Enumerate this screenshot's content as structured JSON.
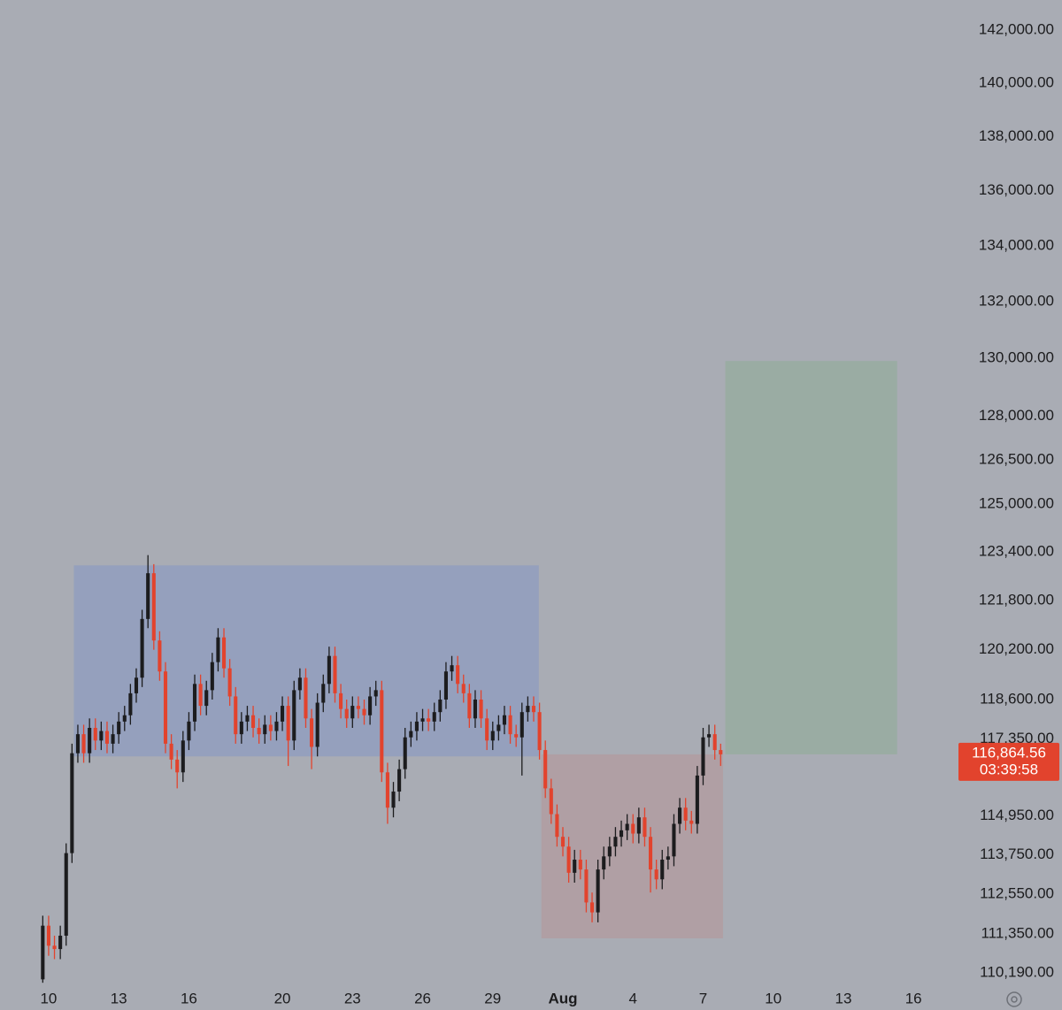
{
  "chart_data": {
    "type": "candlestick",
    "background": "#a9acb4",
    "up_color": "#1c1c1e",
    "down_color": "#e2432d",
    "log": true,
    "grid": false,
    "xlim": [
      -2.08,
      38.81
    ],
    "ylim": [
      109800,
      143160
    ],
    "xticks": [
      {
        "value": 0,
        "label": "10"
      },
      {
        "value": 3,
        "label": "13"
      },
      {
        "value": 6,
        "label": "16"
      },
      {
        "value": 10,
        "label": "20"
      },
      {
        "value": 13,
        "label": "23"
      },
      {
        "value": 16,
        "label": "26"
      },
      {
        "value": 19,
        "label": "29"
      },
      {
        "value": 22,
        "label": "Aug"
      },
      {
        "value": 25,
        "label": "4"
      },
      {
        "value": 28,
        "label": "7"
      },
      {
        "value": 31,
        "label": "10"
      },
      {
        "value": 34,
        "label": "13"
      },
      {
        "value": 37,
        "label": "16"
      }
    ],
    "yticks": [
      {
        "value": 142000,
        "label": "142,000.00"
      },
      {
        "value": 140000,
        "label": "140,000.00"
      },
      {
        "value": 138000,
        "label": "138,000.00"
      },
      {
        "value": 136000,
        "label": "136,000.00"
      },
      {
        "value": 134000,
        "label": "134,000.00"
      },
      {
        "value": 132000,
        "label": "132,000.00"
      },
      {
        "value": 130000,
        "label": "130,000.00"
      },
      {
        "value": 128000,
        "label": "128,000.00"
      },
      {
        "value": 126500,
        "label": "126,500.00"
      },
      {
        "value": 125000,
        "label": "125,000.00"
      },
      {
        "value": 123400,
        "label": "123,400.00"
      },
      {
        "value": 121800,
        "label": "121,800.00"
      },
      {
        "value": 120200,
        "label": "120,200.00"
      },
      {
        "value": 118600,
        "label": "118,600.00"
      },
      {
        "value": 117350,
        "label": "117,350.00"
      },
      {
        "value": 114950,
        "label": "114,950.00"
      },
      {
        "value": 113750,
        "label": "113,750.00"
      },
      {
        "value": 112550,
        "label": "112,550.00"
      },
      {
        "value": 111350,
        "label": "111,350.00"
      },
      {
        "value": 110190,
        "label": "110,190.00"
      }
    ],
    "zones": [
      {
        "x": [
          1.08,
          20.97
        ],
        "y": [
          116800,
          122960
        ],
        "color": "#95a0bd"
      },
      {
        "x": [
          21.08,
          28.85
        ],
        "y": [
          111220,
          116864.56
        ],
        "color": "#b09fa4"
      },
      {
        "x": [
          28.95,
          36.3
        ],
        "y": [
          116864.56,
          129910
        ],
        "color": "#9aaca3"
      }
    ],
    "last_price": {
      "value": 116864.56,
      "label": "116,864.56",
      "color": "#e2432d"
    },
    "countdown": "03:39:58",
    "x": [
      -0.25,
      0,
      0.25,
      0.5,
      0.75,
      1,
      1.25,
      1.5,
      1.75,
      2,
      2.25,
      2.5,
      2.75,
      3,
      3.25,
      3.5,
      3.75,
      4,
      4.25,
      4.5,
      4.75,
      5,
      5.25,
      5.5,
      5.75,
      6,
      6.25,
      6.5,
      6.75,
      7,
      7.25,
      7.5,
      7.75,
      8,
      8.25,
      8.5,
      8.75,
      9,
      9.25,
      9.5,
      9.75,
      10,
      10.25,
      10.5,
      10.75,
      11,
      11.25,
      11.5,
      11.75,
      12,
      12.25,
      12.5,
      12.75,
      13,
      13.25,
      13.5,
      13.75,
      14,
      14.25,
      14.5,
      14.75,
      15,
      15.25,
      15.5,
      15.75,
      16,
      16.25,
      16.5,
      16.75,
      17,
      17.25,
      17.5,
      17.75,
      18,
      18.25,
      18.5,
      18.75,
      19,
      19.25,
      19.5,
      19.75,
      20,
      20.25,
      20.5,
      20.75,
      21,
      21.25,
      21.5,
      21.75,
      22,
      22.25,
      22.5,
      22.75,
      23,
      23.25,
      23.5,
      23.75,
      24,
      24.25,
      24.5,
      24.75,
      25,
      25.25,
      25.5,
      25.75,
      26,
      26.25,
      26.5,
      26.75,
      27,
      27.25,
      27.5,
      27.75,
      28,
      28.25,
      28.5,
      28.75
    ],
    "open": [
      110000,
      111600,
      111000,
      110900,
      111300,
      113800,
      116900,
      117500,
      116900,
      117700,
      117300,
      117600,
      117200,
      117500,
      117900,
      118100,
      118800,
      119300,
      121200,
      122700,
      120500,
      119500,
      117200,
      116700,
      116300,
      117300,
      117900,
      119100,
      118400,
      118900,
      119800,
      120600,
      119600,
      118700,
      117500,
      117900,
      118100,
      117700,
      117500,
      117800,
      117600,
      117900,
      118400,
      117300,
      118900,
      119300,
      118000,
      117100,
      118500,
      119100,
      120000,
      118800,
      118300,
      118000,
      118400,
      118300,
      118100,
      118700,
      118900,
      116300,
      115200,
      115700,
      116400,
      117400,
      117600,
      117900,
      118000,
      117900,
      118200,
      118600,
      119500,
      119700,
      119100,
      118800,
      118000,
      118600,
      118000,
      117300,
      117600,
      117800,
      118100,
      117500,
      117400,
      118200,
      118400,
      118200,
      117000,
      115800,
      115000,
      114300,
      114000,
      113200,
      113600,
      113300,
      112300,
      112000,
      113300,
      113700,
      114000,
      114300,
      114500,
      114700,
      114400,
      114900,
      114300,
      113300,
      113000,
      113600,
      113700,
      114700,
      115200,
      114800,
      114700,
      116200,
      117400,
      117500,
      117000
    ],
    "high": [
      111900,
      111900,
      111300,
      111600,
      114100,
      117200,
      117800,
      117800,
      118000,
      118000,
      117900,
      117900,
      117800,
      118200,
      118400,
      119100,
      119600,
      121500,
      123300,
      123000,
      120800,
      119800,
      117500,
      117000,
      117600,
      118200,
      119400,
      119400,
      119200,
      120100,
      120900,
      120900,
      119900,
      119000,
      118200,
      118400,
      118400,
      118000,
      118100,
      118100,
      118200,
      118700,
      118700,
      119200,
      119600,
      119600,
      118300,
      118800,
      119400,
      120300,
      120300,
      119100,
      118600,
      118700,
      118700,
      118600,
      119000,
      119200,
      119200,
      116600,
      116000,
      116700,
      117700,
      117900,
      118200,
      118300,
      118300,
      118500,
      118900,
      119800,
      120000,
      120000,
      119400,
      119100,
      118900,
      118900,
      118300,
      117900,
      118100,
      118400,
      118400,
      117800,
      118500,
      118700,
      118700,
      118500,
      117300,
      116100,
      115300,
      114600,
      114300,
      113900,
      113900,
      113600,
      112600,
      113600,
      114000,
      114300,
      114600,
      114800,
      115000,
      115000,
      115200,
      115200,
      114600,
      113600,
      113900,
      114000,
      115000,
      115500,
      115500,
      115100,
      116500,
      117700,
      117800,
      117800,
      117200
    ],
    "low": [
      109900,
      110700,
      110600,
      110600,
      111000,
      113500,
      116600,
      116600,
      116600,
      117000,
      117000,
      116900,
      116900,
      117200,
      117600,
      117800,
      118500,
      119000,
      120900,
      120200,
      119200,
      116900,
      116400,
      115800,
      116000,
      117000,
      117600,
      118100,
      118100,
      118600,
      119500,
      119300,
      118400,
      117200,
      117200,
      117600,
      117400,
      117200,
      117200,
      117300,
      117300,
      117600,
      116500,
      117000,
      118600,
      117700,
      116400,
      116800,
      118200,
      118800,
      118500,
      118000,
      117700,
      117700,
      118000,
      117800,
      117800,
      118400,
      116000,
      114700,
      114900,
      115400,
      116100,
      117100,
      117300,
      117600,
      117600,
      117600,
      117900,
      118300,
      119200,
      118800,
      118500,
      117700,
      117700,
      117700,
      117000,
      117000,
      117300,
      117500,
      117200,
      117100,
      116200,
      117900,
      117900,
      116700,
      115500,
      114700,
      114000,
      113700,
      112900,
      112900,
      113000,
      112000,
      111700,
      111700,
      113000,
      113400,
      113700,
      114000,
      114200,
      114100,
      114100,
      114000,
      112600,
      112700,
      112700,
      113300,
      113400,
      114400,
      114500,
      114400,
      114400,
      115900,
      117100,
      116700,
      116500
    ],
    "close": [
      111600,
      111000,
      110900,
      111300,
      113800,
      116900,
      117500,
      116900,
      117700,
      117300,
      117600,
      117200,
      117500,
      117900,
      118100,
      118800,
      119300,
      121200,
      122700,
      120500,
      119500,
      117200,
      116700,
      116300,
      117300,
      117900,
      119100,
      118400,
      118900,
      119800,
      120600,
      119600,
      118700,
      117500,
      117900,
      118100,
      117700,
      117500,
      117800,
      117600,
      117900,
      118400,
      117300,
      118900,
      119300,
      118000,
      117100,
      118500,
      119100,
      120000,
      118800,
      118300,
      118000,
      118400,
      118300,
      118100,
      118700,
      118900,
      116300,
      115200,
      115700,
      116400,
      117400,
      117600,
      117900,
      118000,
      117900,
      118200,
      118600,
      119500,
      119700,
      119100,
      118800,
      118000,
      118600,
      118000,
      117300,
      117600,
      117800,
      118100,
      117500,
      117400,
      118200,
      118400,
      118200,
      117000,
      115800,
      115000,
      114300,
      114000,
      113200,
      113600,
      113300,
      112300,
      112000,
      113300,
      113700,
      114000,
      114300,
      114500,
      114700,
      114400,
      114900,
      114300,
      113300,
      113000,
      113600,
      113700,
      114700,
      115200,
      114800,
      114700,
      116200,
      117400,
      117500,
      117000,
      116864.56
    ]
  }
}
